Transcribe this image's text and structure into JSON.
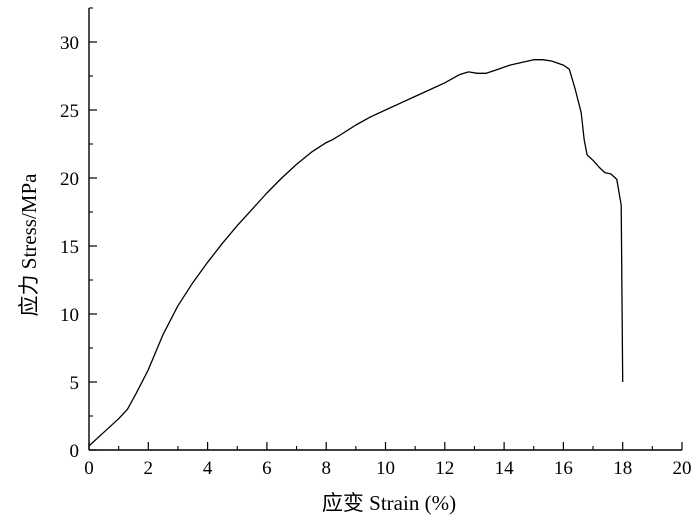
{
  "chart_data": {
    "type": "line",
    "title": "",
    "xlabel": "应变 Strain (%)",
    "ylabel": "应力 Stress/MPa",
    "xlim": [
      0,
      20
    ],
    "ylim": [
      0,
      32.5
    ],
    "x_ticks": [
      0,
      2,
      4,
      6,
      8,
      10,
      12,
      14,
      16,
      18,
      20
    ],
    "y_ticks": [
      0,
      5,
      10,
      15,
      20,
      25,
      30
    ],
    "x_tick_labels": [
      "0",
      "2",
      "4",
      "6",
      "8",
      "10",
      "12",
      "14",
      "16",
      "18",
      "20"
    ],
    "y_tick_labels": [
      "0",
      "5",
      "10",
      "15",
      "20",
      "25",
      "30"
    ],
    "grid": false,
    "legend": "none",
    "series": [
      {
        "color": "#000000",
        "points": [
          [
            0.0,
            0.3
          ],
          [
            0.5,
            1.3
          ],
          [
            1.0,
            2.3
          ],
          [
            1.3,
            3.0
          ],
          [
            1.6,
            4.2
          ],
          [
            2.0,
            5.9
          ],
          [
            2.5,
            8.5
          ],
          [
            3.0,
            10.6
          ],
          [
            3.5,
            12.3
          ],
          [
            4.0,
            13.8
          ],
          [
            4.5,
            15.2
          ],
          [
            5.0,
            16.5
          ],
          [
            5.5,
            17.7
          ],
          [
            6.0,
            18.9
          ],
          [
            6.5,
            20.0
          ],
          [
            7.0,
            21.0
          ],
          [
            7.5,
            21.9
          ],
          [
            8.0,
            22.6
          ],
          [
            8.2,
            22.8
          ],
          [
            8.5,
            23.2
          ],
          [
            9.0,
            23.9
          ],
          [
            9.5,
            24.5
          ],
          [
            10.0,
            25.0
          ],
          [
            10.5,
            25.5
          ],
          [
            11.0,
            26.0
          ],
          [
            11.5,
            26.5
          ],
          [
            12.0,
            27.0
          ],
          [
            12.5,
            27.6
          ],
          [
            12.8,
            27.8
          ],
          [
            13.1,
            27.7
          ],
          [
            13.4,
            27.7
          ],
          [
            13.8,
            28.0
          ],
          [
            14.2,
            28.3
          ],
          [
            14.6,
            28.5
          ],
          [
            15.0,
            28.7
          ],
          [
            15.3,
            28.7
          ],
          [
            15.6,
            28.6
          ],
          [
            16.0,
            28.3
          ],
          [
            16.2,
            28.0
          ],
          [
            16.4,
            26.5
          ],
          [
            16.6,
            24.8
          ],
          [
            16.7,
            22.8
          ],
          [
            16.8,
            21.7
          ],
          [
            17.0,
            21.3
          ],
          [
            17.2,
            20.8
          ],
          [
            17.4,
            20.4
          ],
          [
            17.6,
            20.3
          ],
          [
            17.8,
            19.9
          ],
          [
            17.95,
            18.0
          ],
          [
            18.0,
            5.0
          ]
        ]
      }
    ]
  }
}
